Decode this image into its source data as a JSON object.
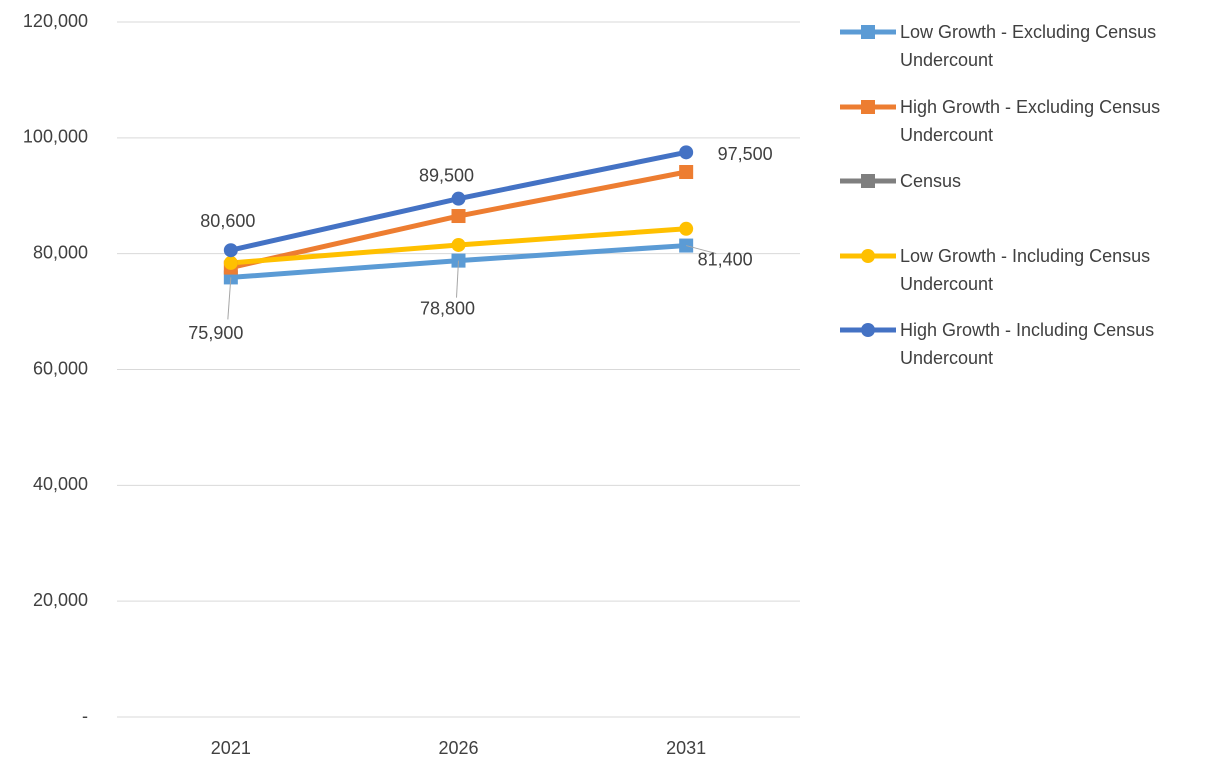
{
  "chart_data": {
    "type": "line",
    "categories": [
      "2021",
      "2026",
      "2031"
    ],
    "series": [
      {
        "name": "Low Growth - Excluding Census Undercount",
        "color": "#5b9bd5",
        "marker": "square",
        "values": [
          75900,
          78800,
          81400
        ],
        "value_labels": [
          "75,900",
          "78,800",
          "81,400"
        ]
      },
      {
        "name": "High Growth - Excluding Census Undercount",
        "color": "#ed7d31",
        "marker": "square",
        "values": [
          77600,
          86500,
          94100
        ]
      },
      {
        "name": "Census",
        "color": "#7f7f7f",
        "marker": "square",
        "values": [
          null,
          null,
          null
        ]
      },
      {
        "name": "Low Growth - Including Census Undercount",
        "color": "#ffc000",
        "marker": "circle",
        "values": [
          78400,
          81500,
          84300
        ]
      },
      {
        "name": "High Growth - Including Census Undercount",
        "color": "#4472c4",
        "marker": "circle",
        "values": [
          80600,
          89500,
          97500
        ],
        "value_labels": [
          "80,600",
          "89,500",
          "97,500"
        ]
      }
    ],
    "ylim": [
      0,
      120000
    ],
    "yticks": [
      {
        "value": 0,
        "label": "-"
      },
      {
        "value": 20000,
        "label": "20,000"
      },
      {
        "value": 40000,
        "label": "40,000"
      },
      {
        "value": 60000,
        "label": "60,000"
      },
      {
        "value": 80000,
        "label": "80,000"
      },
      {
        "value": 100000,
        "label": "100,000"
      },
      {
        "value": 120000,
        "label": "120,000"
      }
    ],
    "grid": true,
    "legend": "right"
  }
}
